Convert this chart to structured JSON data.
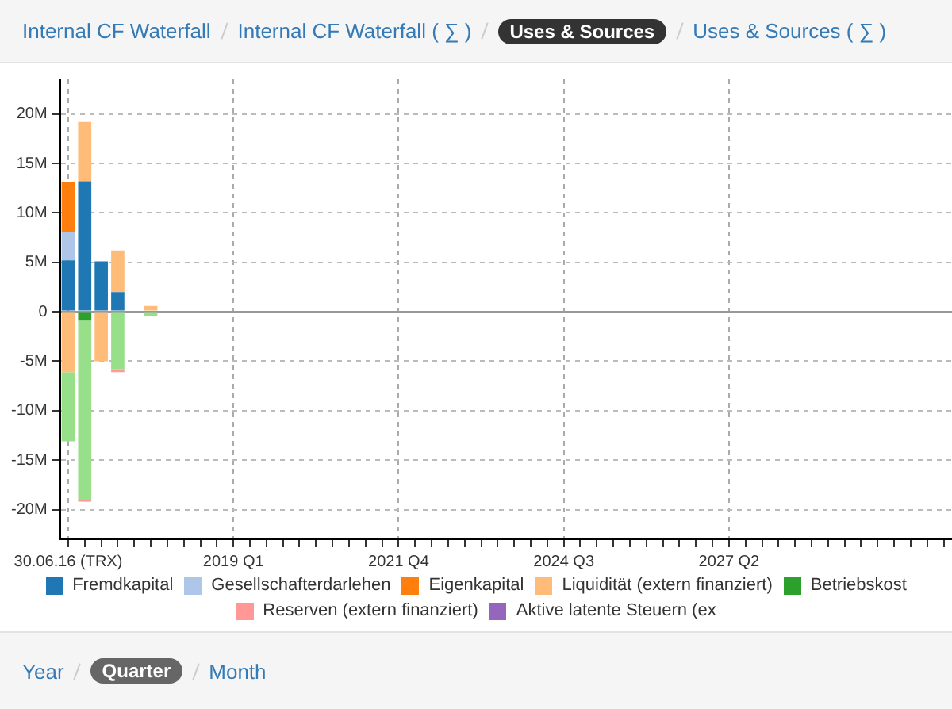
{
  "chart_data": {
    "type": "bar",
    "stacked": true,
    "categories": [
      "30.06.16 (TRX)",
      null,
      null,
      null,
      null,
      null,
      null,
      null,
      null,
      null,
      "2019 Q1",
      null,
      null,
      null,
      null,
      null,
      null,
      null,
      null,
      null,
      "2021 Q4",
      null,
      null,
      null,
      null,
      null,
      null,
      null,
      null,
      null,
      "2024 Q3",
      null,
      null,
      null,
      null,
      null,
      null,
      null,
      null,
      null,
      "2027 Q2",
      null,
      null,
      null,
      null,
      null,
      null,
      null,
      null,
      null,
      null,
      null,
      null,
      null
    ],
    "series": [
      {
        "name": "Fremdkapital",
        "color": "#1f77b4",
        "values": [
          5.2,
          13.2,
          5.1,
          2.0,
          null,
          null,
          null,
          null,
          null,
          null,
          null,
          null,
          null,
          null,
          null,
          null,
          null,
          null,
          null,
          null,
          null,
          null,
          null,
          null,
          null,
          null,
          null,
          null,
          null,
          null,
          null,
          null,
          null,
          null,
          null,
          null,
          null,
          null,
          null,
          null,
          null,
          null,
          null,
          null,
          null,
          null,
          null,
          null,
          null,
          null,
          null,
          null,
          null,
          null
        ]
      },
      {
        "name": "Gesellschafterdarlehen",
        "color": "#aec7e8",
        "values": [
          2.9,
          null,
          null,
          null,
          null,
          null,
          null,
          null,
          null,
          null,
          null,
          null,
          null,
          null,
          null,
          null,
          null,
          null,
          null,
          null,
          null,
          null,
          null,
          null,
          null,
          null,
          null,
          null,
          null,
          null,
          null,
          null,
          null,
          null,
          null,
          null,
          null,
          null,
          null,
          null,
          null,
          null,
          null,
          null,
          null,
          null,
          null,
          null,
          null,
          null,
          null,
          null,
          null,
          null
        ]
      },
      {
        "name": "Eigenkapital",
        "color": "#ff7f0e",
        "values": [
          5.0,
          null,
          null,
          null,
          null,
          null,
          null,
          null,
          null,
          null,
          null,
          null,
          null,
          null,
          null,
          null,
          null,
          null,
          null,
          null,
          null,
          null,
          null,
          null,
          null,
          null,
          null,
          null,
          null,
          null,
          null,
          null,
          null,
          null,
          null,
          null,
          null,
          null,
          null,
          null,
          null,
          null,
          null,
          null,
          null,
          null,
          null,
          null,
          null,
          null,
          null,
          null,
          null,
          null
        ]
      },
      {
        "name": "Liquidität (extern finanziert)",
        "color": "#ffbb78",
        "values": [
          -6.1,
          6.0,
          -5.0,
          4.2,
          null,
          0.6,
          null,
          null,
          null,
          null,
          null,
          null,
          null,
          null,
          null,
          null,
          null,
          null,
          null,
          null,
          null,
          null,
          null,
          null,
          null,
          null,
          null,
          null,
          null,
          null,
          null,
          null,
          null,
          null,
          null,
          null,
          null,
          null,
          null,
          null,
          null,
          null,
          null,
          null,
          null,
          null,
          null,
          null,
          null,
          null,
          null,
          null,
          null,
          null
        ]
      },
      {
        "name": "Betriebskost",
        "color": "#2ca02c",
        "values": [
          null,
          -0.9,
          null,
          null,
          null,
          null,
          null,
          null,
          null,
          null,
          null,
          null,
          null,
          null,
          null,
          null,
          null,
          null,
          null,
          null,
          null,
          null,
          null,
          null,
          null,
          null,
          null,
          null,
          null,
          null,
          null,
          null,
          null,
          null,
          null,
          null,
          null,
          null,
          null,
          null,
          null,
          null,
          null,
          null,
          null,
          null,
          null,
          null,
          null,
          null,
          null,
          null,
          null,
          null
        ]
      },
      {
        "color": "#98df8a",
        "values": [
          -7.0,
          -18.1,
          null,
          -5.8,
          null,
          -0.4,
          null,
          null,
          null,
          null,
          null,
          null,
          null,
          null,
          null,
          null,
          null,
          null,
          null,
          null,
          null,
          null,
          null,
          null,
          null,
          null,
          null,
          null,
          null,
          null,
          null,
          null,
          null,
          null,
          null,
          null,
          null,
          null,
          null,
          null,
          null,
          null,
          null,
          null,
          null,
          null,
          null,
          null,
          null,
          null,
          null,
          null,
          null,
          null
        ]
      },
      {
        "name": "Reserven (extern finanziert)",
        "color": "#ff9896",
        "values": [
          null,
          -0.2,
          null,
          -0.3,
          null,
          null,
          null,
          null,
          null,
          null,
          null,
          null,
          null,
          null,
          null,
          null,
          null,
          null,
          null,
          null,
          null,
          null,
          null,
          null,
          null,
          null,
          null,
          null,
          null,
          null,
          null,
          null,
          null,
          null,
          null,
          null,
          null,
          null,
          null,
          null,
          null,
          null,
          null,
          null,
          null,
          null,
          null,
          null,
          null,
          null,
          null,
          null,
          null,
          null
        ]
      },
      {
        "name": "Aktive latente Steuern (ex",
        "color": "#9467bd",
        "values": [
          null,
          null,
          null,
          null,
          null,
          null,
          null,
          null,
          null,
          null,
          null,
          null,
          null,
          null,
          null,
          null,
          null,
          null,
          null,
          null,
          null,
          null,
          null,
          null,
          null,
          null,
          null,
          null,
          null,
          null,
          null,
          null,
          null,
          null,
          null,
          null,
          null,
          null,
          null,
          null,
          null,
          null,
          null,
          null,
          null,
          null,
          null,
          null,
          null,
          null,
          null,
          null,
          null,
          null
        ]
      }
    ],
    "ylim": [
      -23,
      23.5
    ],
    "yticks": [
      {
        "value": -20,
        "label": "-20M"
      },
      {
        "value": -15,
        "label": "-15M"
      },
      {
        "value": -10,
        "label": "-10M"
      },
      {
        "value": -5,
        "label": "-5M"
      },
      0,
      {
        "value": 5,
        "label": "5M"
      },
      {
        "value": 10,
        "label": "10M"
      },
      {
        "value": 15,
        "label": "15M"
      },
      {
        "value": 20,
        "label": "20M"
      }
    ],
    "grid": true,
    "legend": "bottom",
    "annotations": [
      "Internal CF Waterfall",
      "Internal CF Waterfall ( ∑ )",
      "Uses & Sources",
      "Uses & Sources ( ∑ )",
      "Year",
      "Quarter",
      "Month"
    ]
  }
}
